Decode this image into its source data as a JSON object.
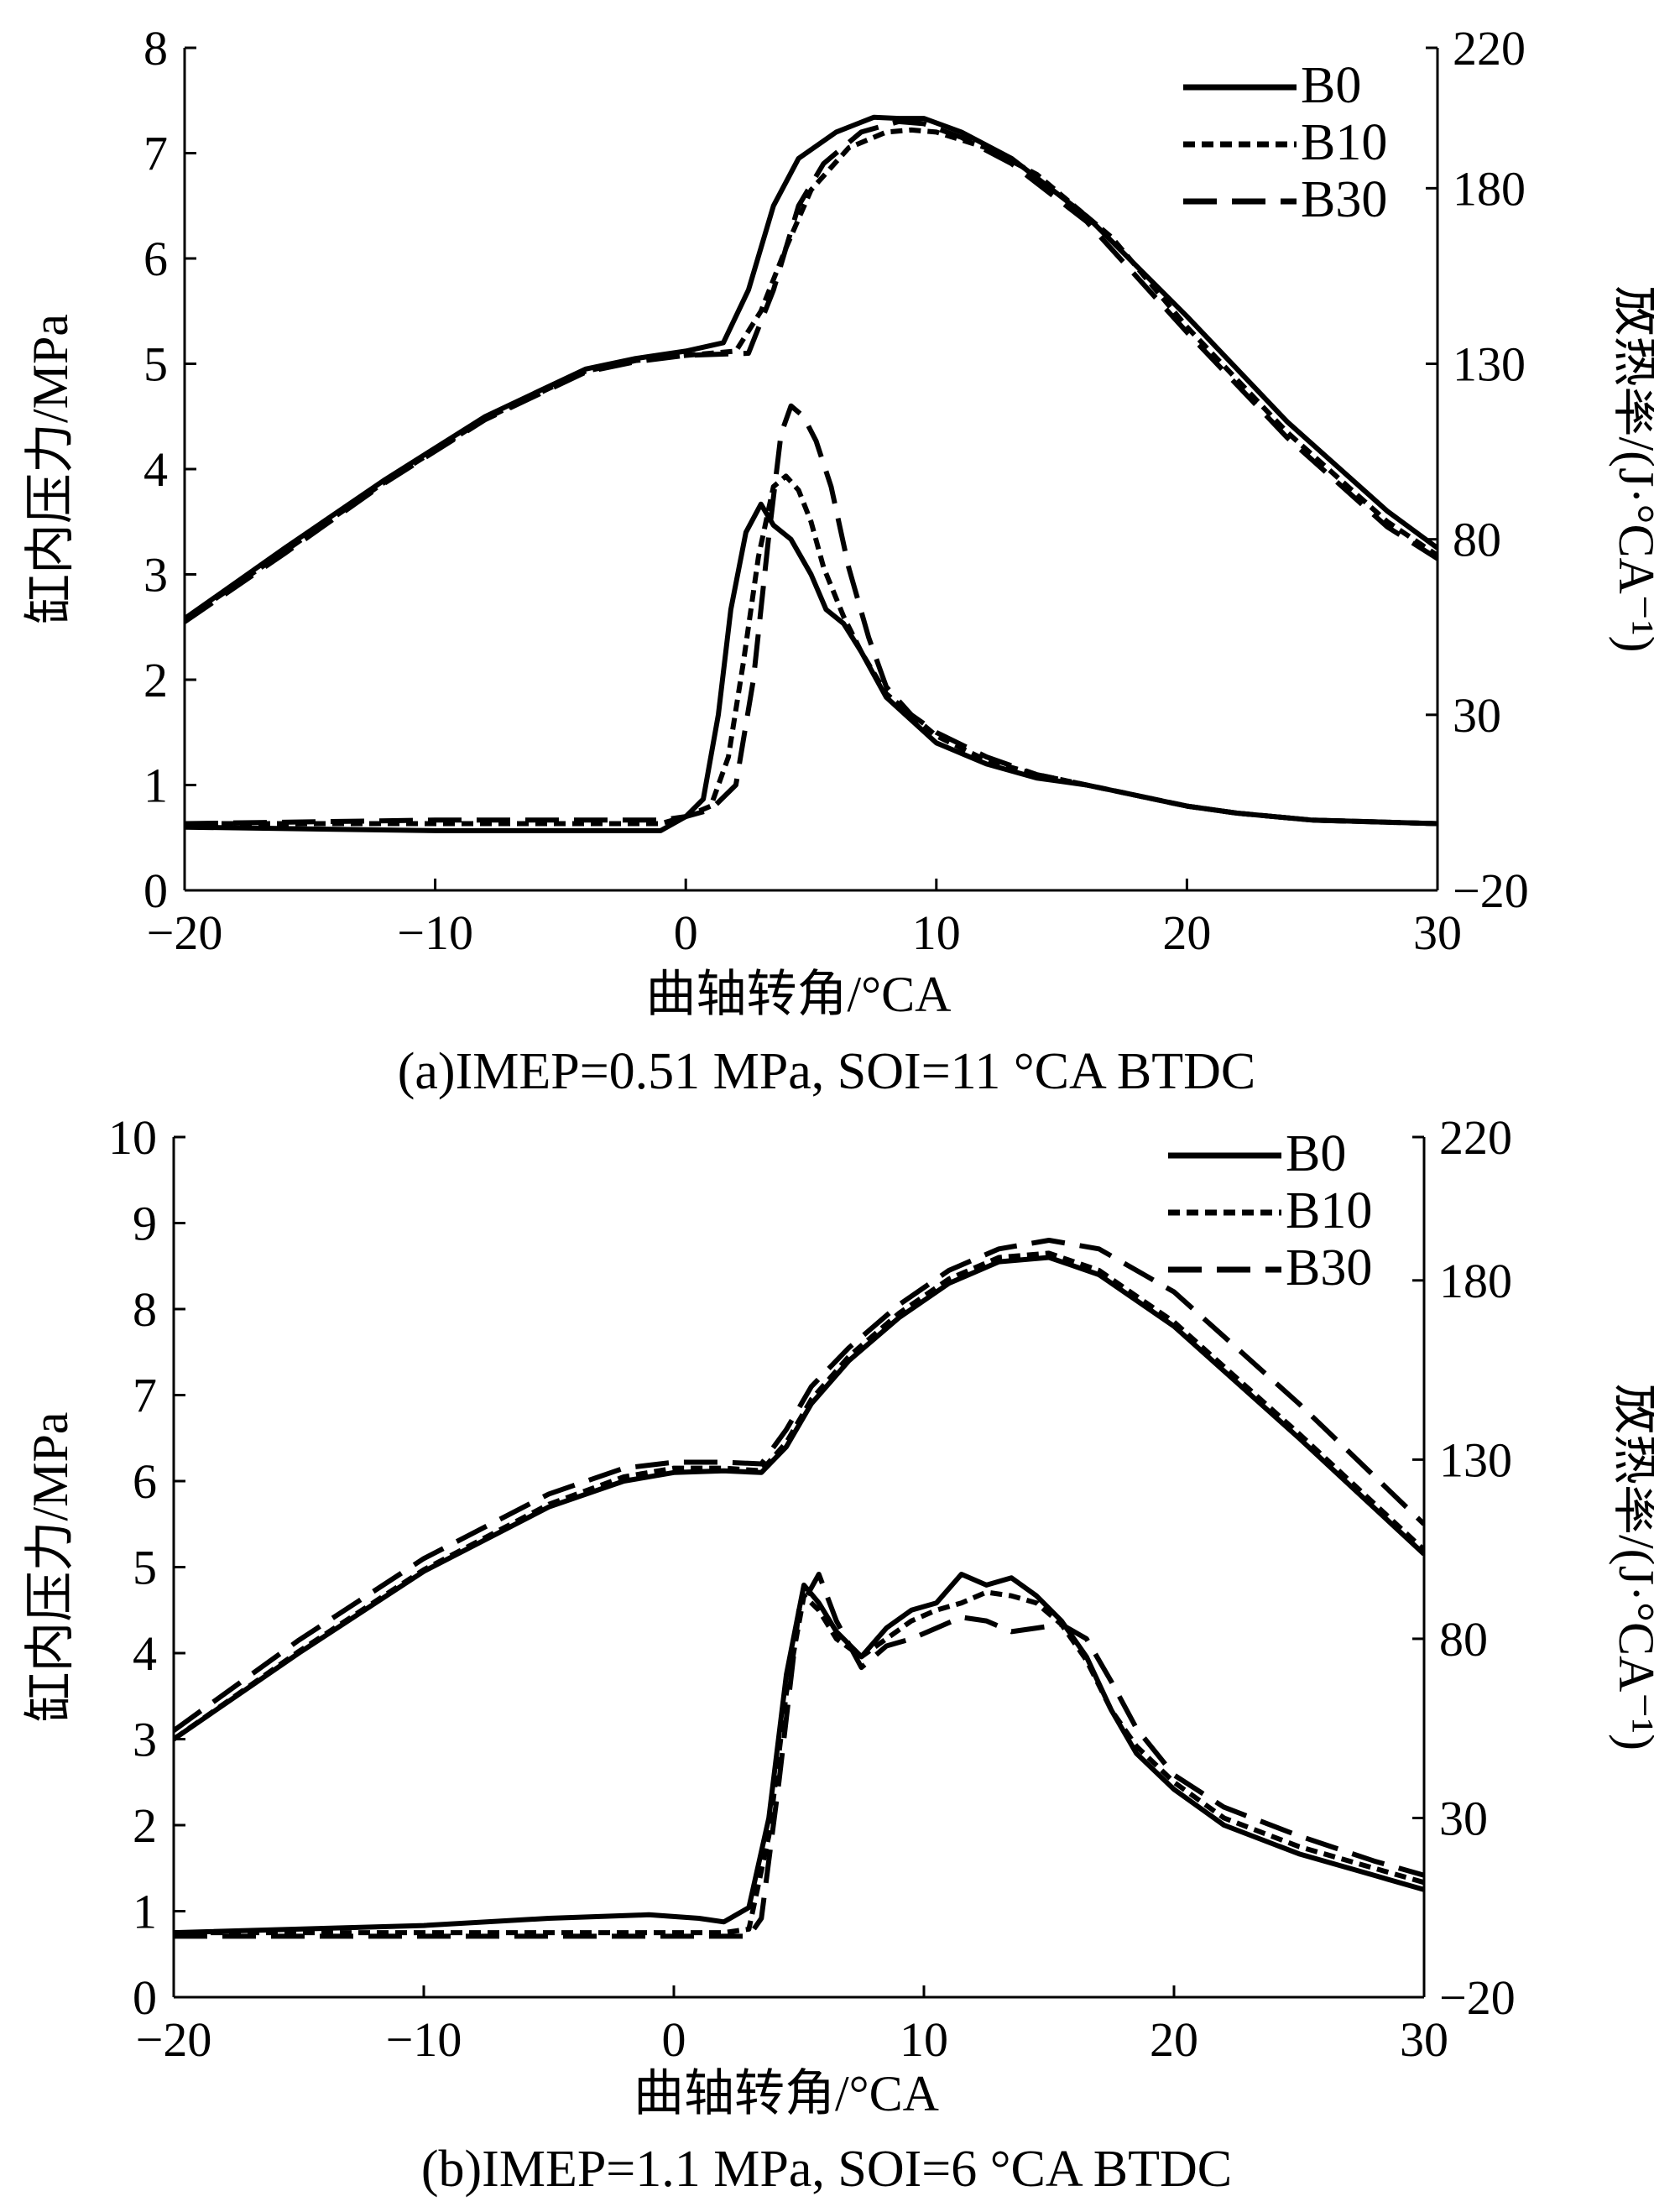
{
  "chart_data": [
    {
      "type": "line",
      "caption": "(a)IMEP=0.51 MPa, SOI=11 °CA BTDC",
      "xlabel": "曲轴转角/°CA",
      "ylabel": "缸内压力/MPa",
      "y2label": "放热率/(J·°CA⁻¹)",
      "xlim": [
        -20,
        30
      ],
      "ylim": [
        0,
        8
      ],
      "y2lim": [
        -20,
        220
      ],
      "xticks": [
        "−20",
        "−10",
        "0",
        "10",
        "20",
        "30"
      ],
      "yticks": [
        "0",
        "1",
        "2",
        "3",
        "4",
        "5",
        "6",
        "7",
        "8"
      ],
      "y2ticks": [
        "−20",
        "30",
        "80",
        "130",
        "180",
        "220"
      ],
      "legend_position": "top-right",
      "series": [
        {
          "name": "B0",
          "style": "solid",
          "quantity": "pressure",
          "x": [
            -20,
            -16,
            -12,
            -8,
            -4,
            -2,
            0,
            1.5,
            2.5,
            3.5,
            4.5,
            6,
            7.5,
            8.5,
            9.5,
            11,
            13,
            16,
            20,
            24,
            28,
            30
          ],
          "y": [
            2.58,
            3.25,
            3.9,
            4.5,
            4.95,
            5.05,
            5.12,
            5.2,
            5.7,
            6.5,
            6.95,
            7.2,
            7.34,
            7.33,
            7.33,
            7.2,
            6.95,
            6.4,
            5.45,
            4.45,
            3.6,
            3.25
          ]
        },
        {
          "name": "B10",
          "style": "short-dash",
          "quantity": "pressure",
          "x": [
            -20,
            -16,
            -12,
            -8,
            -4,
            -2,
            0,
            2,
            3,
            4,
            5,
            6.5,
            8,
            9,
            10,
            12,
            14,
            17,
            20,
            24,
            28,
            30
          ],
          "y": [
            2.57,
            3.22,
            3.88,
            4.48,
            4.93,
            5.03,
            5.08,
            5.12,
            5.5,
            6.1,
            6.65,
            7.05,
            7.2,
            7.22,
            7.2,
            7.05,
            6.8,
            6.2,
            5.35,
            4.35,
            3.5,
            3.18
          ]
        },
        {
          "name": "B30",
          "style": "long-dash",
          "quantity": "pressure",
          "x": [
            -20,
            -16,
            -12,
            -8,
            -4,
            -2,
            0,
            2.5,
            3.5,
            4.5,
            5.5,
            7,
            8.5,
            9.5,
            11,
            13,
            16,
            20,
            24,
            28,
            30
          ],
          "y": [
            2.55,
            3.2,
            3.87,
            4.47,
            4.92,
            5.02,
            5.08,
            5.1,
            5.7,
            6.5,
            6.9,
            7.2,
            7.3,
            7.28,
            7.15,
            6.9,
            6.35,
            5.3,
            4.3,
            3.45,
            3.15
          ]
        },
        {
          "name": "B0",
          "style": "solid",
          "quantity": "heat_release",
          "x": [
            -20,
            -10,
            -4,
            -1,
            0,
            0.7,
            1.3,
            1.8,
            2.4,
            3,
            3.5,
            4.2,
            5,
            5.6,
            6.3,
            7,
            8,
            10,
            12,
            14,
            16,
            18,
            20,
            22,
            25,
            30
          ],
          "y": [
            -2,
            -3,
            -3,
            -3,
            1,
            6,
            30,
            60,
            82,
            90,
            84,
            80,
            70,
            60,
            56,
            48,
            35,
            22,
            16,
            12,
            10,
            7,
            4,
            2,
            0,
            -1
          ]
        },
        {
          "name": "B10",
          "style": "short-dash",
          "quantity": "heat_release",
          "x": [
            -20,
            -10,
            -4,
            -1,
            0,
            1,
            1.7,
            2.3,
            2.9,
            3.5,
            4,
            4.5,
            5,
            5.5,
            6.3,
            7,
            8,
            10,
            12,
            14,
            16,
            18,
            20,
            22,
            25,
            30
          ],
          "y": [
            -1,
            -1,
            -1,
            -1,
            1,
            4,
            18,
            45,
            75,
            95,
            98,
            94,
            85,
            72,
            58,
            48,
            36,
            24,
            17,
            13,
            10,
            7,
            4,
            2,
            0,
            -1
          ]
        },
        {
          "name": "B30",
          "style": "long-dash",
          "quantity": "heat_release",
          "x": [
            -20,
            -10,
            -4,
            -1,
            0,
            1,
            2,
            2.7,
            3.3,
            3.8,
            4.2,
            4.7,
            5.2,
            5.8,
            6.5,
            7.3,
            8,
            9,
            10,
            12,
            14,
            16,
            18,
            20,
            22,
            25,
            30
          ],
          "y": [
            -1,
            0,
            0,
            0,
            1,
            3,
            10,
            40,
            80,
            110,
            118,
            115,
            108,
            95,
            72,
            52,
            38,
            30,
            25,
            18,
            13,
            10,
            7,
            4,
            2,
            0,
            -1
          ]
        }
      ]
    },
    {
      "type": "line",
      "caption": "(b)IMEP=1.1 MPa, SOI=6 °CA BTDC",
      "xlabel": "曲轴转角/°CA",
      "ylabel": "缸内压力/MPa",
      "y2label": "放热率/(J·°CA⁻¹)",
      "xlim": [
        -20,
        30
      ],
      "ylim": [
        0,
        10
      ],
      "y2lim": [
        -20,
        220
      ],
      "xticks": [
        "−20",
        "−10",
        "0",
        "10",
        "20",
        "30"
      ],
      "yticks": [
        "0",
        "1",
        "2",
        "3",
        "4",
        "5",
        "6",
        "7",
        "8",
        "9",
        "10"
      ],
      "y2ticks": [
        "−20",
        "30",
        "80",
        "130",
        "180",
        "220"
      ],
      "legend_position": "top-right",
      "series": [
        {
          "name": "B0",
          "style": "solid",
          "quantity": "pressure",
          "x": [
            -20,
            -15,
            -10,
            -5,
            -2,
            0,
            2,
            3.5,
            4.5,
            5.5,
            7,
            9,
            11,
            13,
            15,
            17,
            20,
            25,
            30
          ],
          "y": [
            3.0,
            4.0,
            4.95,
            5.7,
            6.0,
            6.1,
            6.12,
            6.1,
            6.4,
            6.9,
            7.4,
            7.9,
            8.3,
            8.55,
            8.6,
            8.4,
            7.8,
            6.5,
            5.15
          ]
        },
        {
          "name": "B10",
          "style": "short-dash",
          "quantity": "pressure",
          "x": [
            -20,
            -15,
            -10,
            -5,
            -2,
            0,
            2,
            3.5,
            4.5,
            5.5,
            7,
            9,
            11,
            13,
            15,
            17,
            20,
            25,
            30
          ],
          "y": [
            3.0,
            4.02,
            4.97,
            5.73,
            6.05,
            6.15,
            6.15,
            6.12,
            6.45,
            6.95,
            7.45,
            7.95,
            8.35,
            8.6,
            8.65,
            8.45,
            7.85,
            6.55,
            5.2
          ]
        },
        {
          "name": "B30",
          "style": "long-dash",
          "quantity": "pressure",
          "x": [
            -20,
            -15,
            -10,
            -5,
            -2,
            0,
            2,
            3.5,
            4.5,
            5.5,
            7,
            9,
            11,
            13,
            15,
            17,
            20,
            25,
            30
          ],
          "y": [
            3.1,
            4.15,
            5.1,
            5.85,
            6.15,
            6.22,
            6.22,
            6.2,
            6.6,
            7.1,
            7.55,
            8.05,
            8.45,
            8.7,
            8.8,
            8.7,
            8.2,
            6.9,
            5.5
          ]
        },
        {
          "name": "B0",
          "style": "solid",
          "quantity": "heat_release",
          "x": [
            -20,
            -10,
            -5,
            -1,
            1,
            2,
            3,
            3.8,
            4.5,
            5.2,
            5.8,
            6.5,
            7.5,
            8.5,
            9.5,
            10.5,
            11.5,
            12.5,
            13.5,
            14.5,
            15.5,
            16.5,
            17.5,
            18.5,
            20,
            22,
            25,
            28,
            30
          ],
          "y": [
            -2,
            0,
            2,
            3,
            2,
            1,
            5,
            30,
            70,
            95,
            90,
            82,
            75,
            83,
            88,
            90,
            98,
            95,
            97,
            92,
            85,
            75,
            60,
            48,
            38,
            28,
            20,
            14,
            10
          ]
        },
        {
          "name": "B10",
          "style": "short-dash",
          "quantity": "heat_release",
          "x": [
            -20,
            -10,
            -5,
            -1,
            1,
            2,
            3,
            3.8,
            4.5,
            5.2,
            5.8,
            6.5,
            7.5,
            8.5,
            9.5,
            10.5,
            11.5,
            12.5,
            13.5,
            14.5,
            15.5,
            16.5,
            17.5,
            18.5,
            20,
            22,
            25,
            28,
            30
          ],
          "y": [
            -2,
            -2,
            -2,
            -2,
            -2,
            -2,
            -1,
            25,
            65,
            92,
            88,
            80,
            75,
            80,
            85,
            88,
            90,
            93,
            92,
            90,
            84,
            74,
            60,
            50,
            40,
            30,
            22,
            16,
            12
          ]
        },
        {
          "name": "B30",
          "style": "long-dash",
          "quantity": "heat_release",
          "x": [
            -20,
            -10,
            -5,
            -1,
            1,
            2,
            3,
            3.5,
            4.2,
            5,
            5.8,
            6.5,
            7.5,
            8.5,
            9.5,
            10.5,
            11.5,
            12.5,
            13.5,
            14.5,
            15.5,
            16.5,
            17.5,
            18.5,
            20,
            22,
            25,
            28,
            30
          ],
          "y": [
            -3,
            -3,
            -3,
            -3,
            -3,
            -3,
            -3,
            2,
            40,
            88,
            98,
            85,
            72,
            78,
            80,
            83,
            86,
            85,
            82,
            83,
            84,
            80,
            68,
            55,
            42,
            33,
            25,
            18,
            14
          ]
        }
      ],
      "legend": [
        "B0",
        "B10",
        "B30"
      ]
    }
  ]
}
